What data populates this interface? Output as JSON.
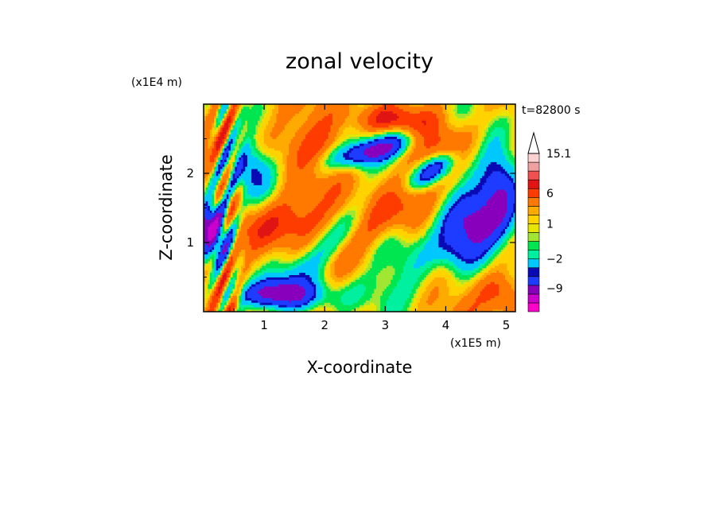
{
  "chart_data": {
    "type": "heatmap",
    "title": "zonal velocity",
    "xlabel": "X-coordinate",
    "ylabel": "Z-coordinate",
    "x_unit": "(x1E5 m)",
    "y_unit": "(x1E4 m)",
    "time_label": "t=82800 s",
    "xlim": [
      0,
      5.15
    ],
    "ylim": [
      0,
      3.0
    ],
    "x_ticks": [
      {
        "value": 1,
        "label": "1"
      },
      {
        "value": 2,
        "label": "2"
      },
      {
        "value": 3,
        "label": "3"
      },
      {
        "value": 4,
        "label": "4"
      },
      {
        "value": 5,
        "label": "5"
      }
    ],
    "y_ticks": [
      {
        "value": 1,
        "label": "1"
      },
      {
        "value": 2,
        "label": "2"
      }
    ],
    "colorbar": {
      "labels": [
        {
          "text": "15.1",
          "value": 15.1
        },
        {
          "text": "6",
          "value": 6
        },
        {
          "text": "1",
          "value": 1
        },
        {
          "text": "−2",
          "value": -2
        },
        {
          "text": "−9",
          "value": -9
        }
      ],
      "levels": [
        {
          "color": "#ff00cc",
          "value": -14
        },
        {
          "color": "#cc00cc",
          "value": -11
        },
        {
          "color": "#8800bb",
          "value": -8
        },
        {
          "color": "#1e3cff",
          "value": -5
        },
        {
          "color": "#0a0ab4",
          "value": -4
        },
        {
          "color": "#00c8ff",
          "value": -2
        },
        {
          "color": "#00f0a0",
          "value": -1
        },
        {
          "color": "#00e650",
          "value": 0
        },
        {
          "color": "#a0e632",
          "value": 0.5
        },
        {
          "color": "#e6e600",
          "value": 1
        },
        {
          "color": "#ffd200",
          "value": 2
        },
        {
          "color": "#ffaa00",
          "value": 3
        },
        {
          "color": "#ff7800",
          "value": 5
        },
        {
          "color": "#ff3c00",
          "value": 7
        },
        {
          "color": "#e11414",
          "value": 9
        },
        {
          "color": "#f05050",
          "value": 11
        },
        {
          "color": "#f0a0a0",
          "value": 13
        },
        {
          "color": "#ffd2d2",
          "value": 15.1
        }
      ],
      "extends_max": true
    },
    "grid": false
  }
}
